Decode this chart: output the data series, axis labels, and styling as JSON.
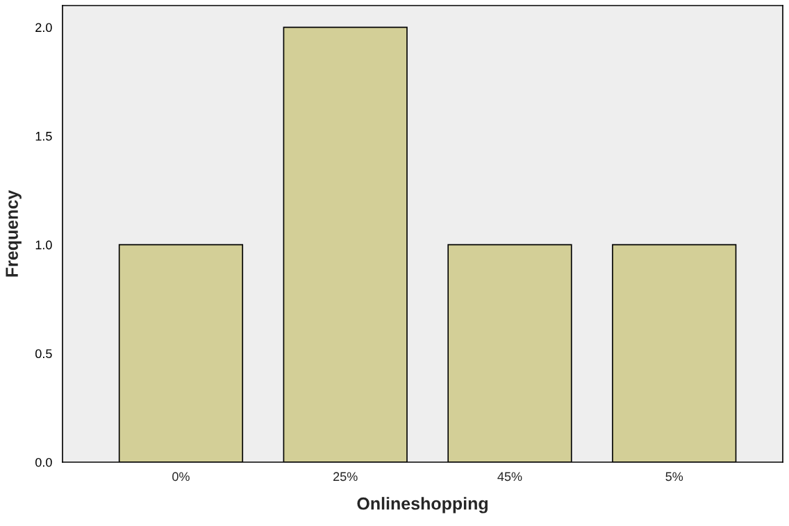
{
  "chart_data": {
    "type": "bar",
    "xlabel": "Onlineshopping",
    "ylabel": "Frequency",
    "categories": [
      "0%",
      "25%",
      "45%",
      "5%"
    ],
    "values": [
      1,
      2,
      1,
      1
    ],
    "color": "#d3cf97",
    "ylim": [
      0,
      2.1
    ],
    "yticks": [
      {
        "value": 0,
        "label": "0.0"
      },
      {
        "value": 0.5,
        "label": "0.5"
      },
      {
        "value": 1,
        "label": "1.0"
      },
      {
        "value": 1.5,
        "label": "1.5"
      },
      {
        "value": 2,
        "label": "2.0"
      }
    ],
    "grid": false,
    "legend": false
  }
}
